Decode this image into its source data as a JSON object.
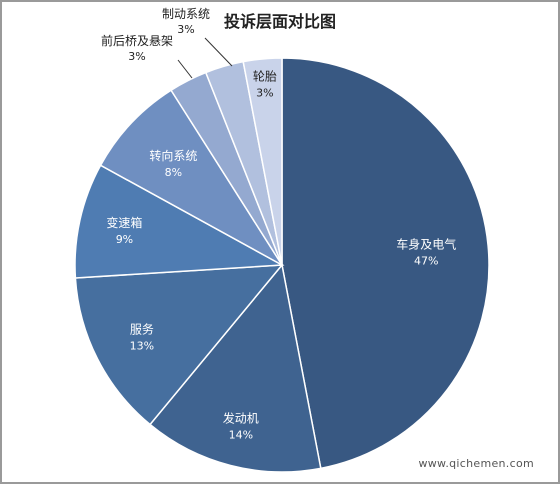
{
  "chart_data": {
    "type": "pie",
    "title": "投诉层面对比图",
    "slices": [
      {
        "label": "车身及电气",
        "value": 47,
        "pct_label": "47%",
        "color": "#385882"
      },
      {
        "label": "发动机",
        "value": 14,
        "pct_label": "14%",
        "color": "#3f6390"
      },
      {
        "label": "服务",
        "value": 13,
        "pct_label": "13%",
        "color": "#466f9f"
      },
      {
        "label": "变速箱",
        "value": 9,
        "pct_label": "9%",
        "color": "#4f7cb2"
      },
      {
        "label": "转向系统",
        "value": 8,
        "pct_label": "8%",
        "color": "#6f8fc1"
      },
      {
        "label": "前后桥及悬架",
        "value": 3,
        "pct_label": "3%",
        "color": "#94a9d0"
      },
      {
        "label": "制动系统",
        "value": 3,
        "pct_label": "3%",
        "color": "#b1c0de"
      },
      {
        "label": "轮胎",
        "value": 3,
        "pct_label": "3%",
        "color": "#c9d3ea"
      }
    ]
  },
  "watermark": "www.qichemen.com"
}
